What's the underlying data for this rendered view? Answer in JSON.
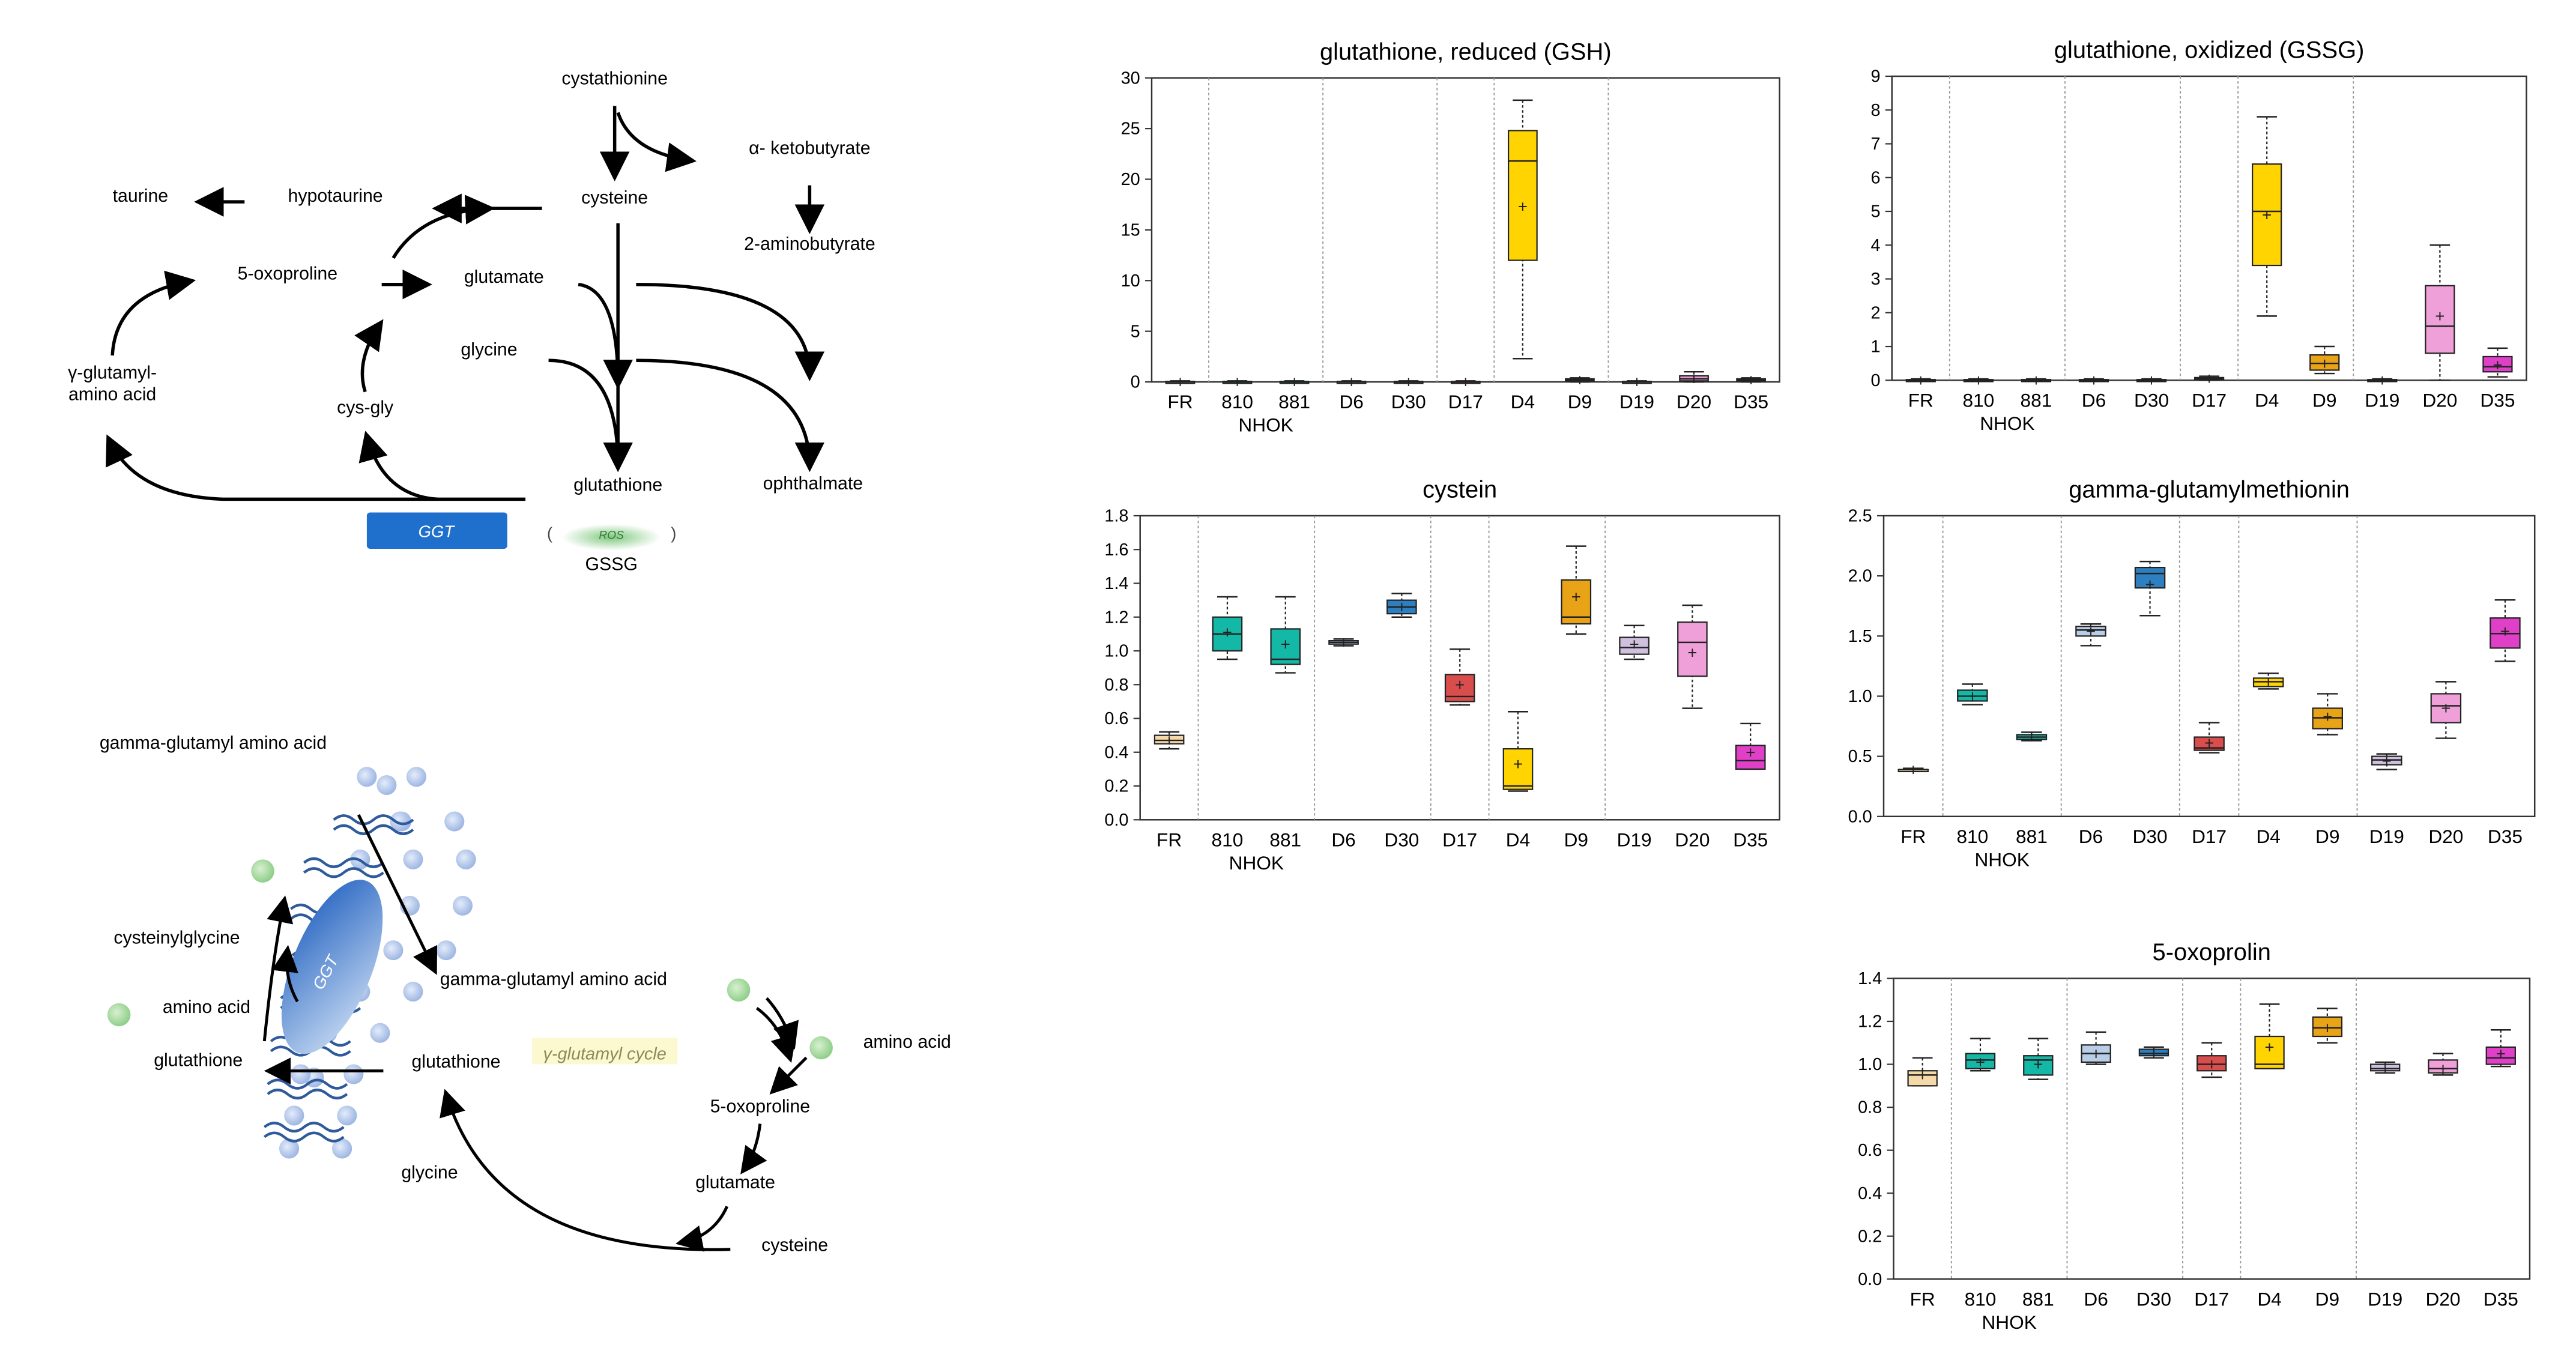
{
  "pathway": {
    "nodes": {
      "cystathionine": "cystathionine",
      "ketobutyrate": "α- ketobutyrate",
      "taurine": "taurine",
      "hypotaurine": "hypotaurine",
      "cysteine": "cysteine",
      "aminobutyrate": "2-aminobutyrate",
      "oxoproline": "5-oxoproline",
      "glutamate": "glutamate",
      "glycine": "glycine",
      "gamma_aa_1": "γ-glutamyl-",
      "gamma_aa_2": "amino acid",
      "cysgly": "cys-gly",
      "glutathione": "glutathione",
      "ophthalmate": "ophthalmate",
      "ggt_box": "GGT",
      "ros": "ROS",
      "gssg": "GSSG",
      "paren_open": "(",
      "paren_close": ")"
    },
    "colors": {
      "ggt": "#1f6fcc",
      "ros": "#7ec87e"
    }
  },
  "membrane": {
    "title": "gamma-glutamyl amino acid",
    "cysteinylglycine": "cysteinylglycine",
    "amino_acid_left": "amino acid",
    "glutathione_left": "glutathione",
    "ggt_label": "GGT",
    "gamma_aa_out": "gamma-glutamyl amino acid",
    "glutathione_in": "glutathione",
    "cycle_label": "γ-glutamyl cycle",
    "amino_acid_right": "amino acid",
    "oxoproline": "5-oxoproline",
    "glutamate": "glutamate",
    "glycine": "glycine",
    "cysteine": "cysteine"
  },
  "chart_data": [
    {
      "type": "box",
      "title": "glutathione, reduced (GSH)",
      "ylim": [
        0,
        30
      ],
      "yticks": [
        0,
        5,
        10,
        15,
        20,
        25,
        30
      ],
      "categories": [
        "FR",
        "810",
        "881",
        "D6",
        "D30",
        "D17",
        "D4",
        "D9",
        "D19",
        "D20",
        "D35"
      ],
      "group_label": "NHOK",
      "boxes": [
        {
          "min": 0,
          "q1": 0,
          "med": 0,
          "q3": 0.05,
          "max": 0.1,
          "mean": 0,
          "color": "#f6d9a8"
        },
        {
          "min": 0,
          "q1": 0,
          "med": 0,
          "q3": 0.05,
          "max": 0.1,
          "mean": 0,
          "color": "#14b8a6"
        },
        {
          "min": 0,
          "q1": 0,
          "med": 0,
          "q3": 0.05,
          "max": 0.1,
          "mean": 0,
          "color": "#14b8a6"
        },
        {
          "min": 0,
          "q1": 0,
          "med": 0,
          "q3": 0.05,
          "max": 0.1,
          "mean": 0,
          "color": "#b9cde6"
        },
        {
          "min": 0,
          "q1": 0,
          "med": 0,
          "q3": 0.05,
          "max": 0.1,
          "mean": 0,
          "color": "#2d7fc0"
        },
        {
          "min": 0,
          "q1": 0,
          "med": 0,
          "q3": 0.05,
          "max": 0.1,
          "mean": 0,
          "color": "#d94d4d"
        },
        {
          "min": 2.3,
          "q1": 12,
          "med": 21.8,
          "q3": 24.8,
          "max": 27.8,
          "mean": 17.3,
          "color": "#ffd400"
        },
        {
          "min": 0,
          "q1": 0.1,
          "med": 0.2,
          "q3": 0.3,
          "max": 0.4,
          "mean": 0.2,
          "color": "#e8a317"
        },
        {
          "min": 0,
          "q1": 0,
          "med": 0,
          "q3": 0.05,
          "max": 0.1,
          "mean": 0,
          "color": "#cfc0e0"
        },
        {
          "min": 0,
          "q1": 0.1,
          "med": 0.3,
          "q3": 0.6,
          "max": 1.0,
          "mean": 0.3,
          "color": "#f0a0d8"
        },
        {
          "min": 0,
          "q1": 0.1,
          "med": 0.2,
          "q3": 0.3,
          "max": 0.4,
          "mean": 0.2,
          "color": "#e040c8"
        }
      ]
    },
    {
      "type": "box",
      "title": "glutathione, oxidized (GSSG)",
      "ylim": [
        0,
        9
      ],
      "yticks": [
        0,
        1,
        2,
        3,
        4,
        5,
        6,
        7,
        8,
        9
      ],
      "categories": [
        "FR",
        "810",
        "881",
        "D6",
        "D30",
        "D17",
        "D4",
        "D9",
        "D19",
        "D20",
        "D35"
      ],
      "group_label": "NHOK",
      "boxes": [
        {
          "min": 0,
          "q1": 0,
          "med": 0,
          "q3": 0.02,
          "max": 0.04,
          "mean": 0,
          "color": "#f6d9a8"
        },
        {
          "min": 0,
          "q1": 0,
          "med": 0,
          "q3": 0.02,
          "max": 0.04,
          "mean": 0,
          "color": "#14b8a6"
        },
        {
          "min": 0,
          "q1": 0,
          "med": 0,
          "q3": 0.02,
          "max": 0.04,
          "mean": 0,
          "color": "#14b8a6"
        },
        {
          "min": 0,
          "q1": 0,
          "med": 0,
          "q3": 0.02,
          "max": 0.04,
          "mean": 0,
          "color": "#b9cde6"
        },
        {
          "min": 0,
          "q1": 0,
          "med": 0,
          "q3": 0.02,
          "max": 0.04,
          "mean": 0,
          "color": "#2d7fc0"
        },
        {
          "min": 0,
          "q1": 0.02,
          "med": 0.05,
          "q3": 0.08,
          "max": 0.12,
          "mean": 0.05,
          "color": "#d94d4d"
        },
        {
          "min": 1.9,
          "q1": 3.4,
          "med": 5.0,
          "q3": 6.4,
          "max": 7.8,
          "mean": 4.9,
          "color": "#ffd400"
        },
        {
          "min": 0.2,
          "q1": 0.3,
          "med": 0.5,
          "q3": 0.75,
          "max": 1.0,
          "mean": 0.5,
          "color": "#e8a317"
        },
        {
          "min": 0,
          "q1": 0,
          "med": 0,
          "q3": 0.02,
          "max": 0.04,
          "mean": 0,
          "color": "#cfc0e0"
        },
        {
          "min": 0,
          "q1": 0.8,
          "med": 1.6,
          "q3": 2.8,
          "max": 4.0,
          "mean": 1.9,
          "color": "#f0a0d8"
        },
        {
          "min": 0.1,
          "q1": 0.25,
          "med": 0.4,
          "q3": 0.7,
          "max": 0.95,
          "mean": 0.45,
          "color": "#e040c8"
        }
      ]
    },
    {
      "type": "box",
      "title": "cystein",
      "ylim": [
        0,
        1.8
      ],
      "yticks": [
        0,
        0.2,
        0.4,
        0.6,
        0.8,
        1.0,
        1.2,
        1.4,
        1.6,
        1.8
      ],
      "categories": [
        "FR",
        "810",
        "881",
        "D6",
        "D30",
        "D17",
        "D4",
        "D9",
        "D19",
        "D20",
        "D35"
      ],
      "group_label": "NHOK",
      "boxes": [
        {
          "min": 0.42,
          "q1": 0.45,
          "med": 0.47,
          "q3": 0.5,
          "max": 0.52,
          "mean": 0.47,
          "color": "#f6d9a8"
        },
        {
          "min": 0.95,
          "q1": 1.0,
          "med": 1.1,
          "q3": 1.2,
          "max": 1.32,
          "mean": 1.11,
          "color": "#14b8a6"
        },
        {
          "min": 0.87,
          "q1": 0.92,
          "med": 0.95,
          "q3": 1.13,
          "max": 1.32,
          "mean": 1.04,
          "color": "#14b8a6"
        },
        {
          "min": 1.03,
          "q1": 1.04,
          "med": 1.05,
          "q3": 1.06,
          "max": 1.07,
          "mean": 1.05,
          "color": "#b9cde6"
        },
        {
          "min": 1.2,
          "q1": 1.22,
          "med": 1.26,
          "q3": 1.3,
          "max": 1.34,
          "mean": 1.26,
          "color": "#2d7fc0"
        },
        {
          "min": 0.68,
          "q1": 0.7,
          "med": 0.73,
          "q3": 0.86,
          "max": 1.01,
          "mean": 0.8,
          "color": "#d94d4d"
        },
        {
          "min": 0.17,
          "q1": 0.18,
          "med": 0.2,
          "q3": 0.42,
          "max": 0.64,
          "mean": 0.33,
          "color": "#ffd400"
        },
        {
          "min": 1.1,
          "q1": 1.16,
          "med": 1.2,
          "q3": 1.42,
          "max": 1.62,
          "mean": 1.32,
          "color": "#e8a317"
        },
        {
          "min": 0.95,
          "q1": 0.98,
          "med": 1.02,
          "q3": 1.08,
          "max": 1.15,
          "mean": 1.04,
          "color": "#cfc0e0"
        },
        {
          "min": 0.66,
          "q1": 0.85,
          "med": 1.05,
          "q3": 1.17,
          "max": 1.27,
          "mean": 0.99,
          "color": "#f0a0d8"
        },
        {
          "min": 0.3,
          "q1": 0.3,
          "med": 0.35,
          "q3": 0.44,
          "max": 0.57,
          "mean": 0.4,
          "color": "#e040c8"
        }
      ]
    },
    {
      "type": "box",
      "title": "gamma-glutamylmethionin",
      "ylim": [
        0,
        2.5
      ],
      "yticks": [
        0,
        0.5,
        1.0,
        1.5,
        2.0,
        2.5
      ],
      "categories": [
        "FR",
        "810",
        "881",
        "D6",
        "D30",
        "D17",
        "D4",
        "D9",
        "D19",
        "D20",
        "D35"
      ],
      "group_label": "NHOK",
      "boxes": [
        {
          "min": 0.38,
          "q1": 0.38,
          "med": 0.39,
          "q3": 0.39,
          "max": 0.4,
          "mean": 0.39,
          "color": "#f6d9a8"
        },
        {
          "min": 0.93,
          "q1": 0.96,
          "med": 1.0,
          "q3": 1.05,
          "max": 1.1,
          "mean": 1.0,
          "color": "#14b8a6"
        },
        {
          "min": 0.63,
          "q1": 0.64,
          "med": 0.66,
          "q3": 0.68,
          "max": 0.7,
          "mean": 0.66,
          "color": "#14b8a6"
        },
        {
          "min": 1.42,
          "q1": 1.5,
          "med": 1.55,
          "q3": 1.58,
          "max": 1.6,
          "mean": 1.54,
          "color": "#b9cde6"
        },
        {
          "min": 1.67,
          "q1": 1.9,
          "med": 2.02,
          "q3": 2.07,
          "max": 2.12,
          "mean": 1.93,
          "color": "#2d7fc0"
        },
        {
          "min": 0.53,
          "q1": 0.55,
          "med": 0.57,
          "q3": 0.66,
          "max": 0.78,
          "mean": 0.61,
          "color": "#d94d4d"
        },
        {
          "min": 1.06,
          "q1": 1.08,
          "med": 1.12,
          "q3": 1.15,
          "max": 1.19,
          "mean": 1.12,
          "color": "#ffd400"
        },
        {
          "min": 0.68,
          "q1": 0.73,
          "med": 0.82,
          "q3": 0.9,
          "max": 1.02,
          "mean": 0.83,
          "color": "#e8a317"
        },
        {
          "min": 0.39,
          "q1": 0.43,
          "med": 0.47,
          "q3": 0.5,
          "max": 0.52,
          "mean": 0.46,
          "color": "#cfc0e0"
        },
        {
          "min": 0.65,
          "q1": 0.78,
          "med": 0.92,
          "q3": 1.02,
          "max": 1.12,
          "mean": 0.9,
          "color": "#f0a0d8"
        },
        {
          "min": 1.29,
          "q1": 1.4,
          "med": 1.52,
          "q3": 1.65,
          "max": 1.8,
          "mean": 1.54,
          "color": "#e040c8"
        }
      ]
    },
    {
      "type": "box",
      "title": "5-oxoprolin",
      "ylim": [
        0,
        1.4
      ],
      "yticks": [
        0,
        0.2,
        0.4,
        0.6,
        0.8,
        1.0,
        1.2,
        1.4
      ],
      "categories": [
        "FR",
        "810",
        "881",
        "D6",
        "D30",
        "D17",
        "D4",
        "D9",
        "D19",
        "D20",
        "D35"
      ],
      "group_label": "NHOK",
      "boxes": [
        {
          "min": 0.9,
          "q1": 0.9,
          "med": 0.95,
          "q3": 0.97,
          "max": 1.03,
          "mean": 0.95,
          "color": "#f6d9a8"
        },
        {
          "min": 0.97,
          "q1": 0.98,
          "med": 1.02,
          "q3": 1.05,
          "max": 1.12,
          "mean": 1.01,
          "color": "#14b8a6"
        },
        {
          "min": 0.93,
          "q1": 0.95,
          "med": 1.02,
          "q3": 1.04,
          "max": 1.12,
          "mean": 1.0,
          "color": "#14b8a6"
        },
        {
          "min": 1.0,
          "q1": 1.01,
          "med": 1.05,
          "q3": 1.09,
          "max": 1.15,
          "mean": 1.05,
          "color": "#b9cde6"
        },
        {
          "min": 1.03,
          "q1": 1.04,
          "med": 1.05,
          "q3": 1.07,
          "max": 1.08,
          "mean": 1.05,
          "color": "#2d7fc0"
        },
        {
          "min": 0.94,
          "q1": 0.97,
          "med": 1.0,
          "q3": 1.04,
          "max": 1.1,
          "mean": 1.0,
          "color": "#d94d4d"
        },
        {
          "min": 0.98,
          "q1": 0.98,
          "med": 1.0,
          "q3": 1.13,
          "max": 1.28,
          "mean": 1.08,
          "color": "#ffd400"
        },
        {
          "min": 1.1,
          "q1": 1.13,
          "med": 1.17,
          "q3": 1.22,
          "max": 1.26,
          "mean": 1.17,
          "color": "#e8a317"
        },
        {
          "min": 0.96,
          "q1": 0.97,
          "med": 0.98,
          "q3": 1.0,
          "max": 1.01,
          "mean": 0.98,
          "color": "#cfc0e0"
        },
        {
          "min": 0.95,
          "q1": 0.96,
          "med": 0.98,
          "q3": 1.02,
          "max": 1.05,
          "mean": 0.98,
          "color": "#f0a0d8"
        },
        {
          "min": 0.99,
          "q1": 1.0,
          "med": 1.03,
          "q3": 1.08,
          "max": 1.16,
          "mean": 1.05,
          "color": "#e040c8"
        }
      ]
    }
  ]
}
